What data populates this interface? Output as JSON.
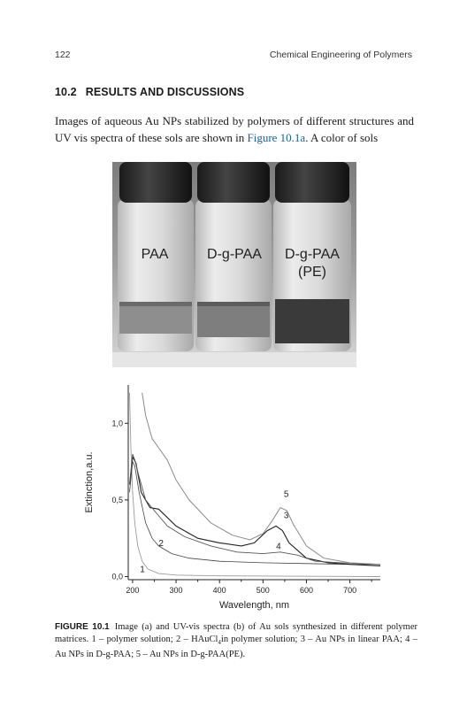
{
  "header": {
    "page_number": "122",
    "book_title": "Chemical Engineering of Polymers"
  },
  "section": {
    "number": "10.2",
    "title": "RESULTS AND DISCUSSIONS"
  },
  "paragraph": {
    "before_link": "Images of aqueous Au NPs stabilized by polymers of different structures and UV vis spectra of these sols are shown in ",
    "link": "Figure 10.1a",
    "after_link": ". A color of sols"
  },
  "photo": {
    "vial_labels": [
      "PAA",
      "D-g-PAA",
      "D-g-PAA",
      "(PE)"
    ]
  },
  "chart_data": {
    "type": "line",
    "ylabel": "Extinction,a.u.",
    "xlabel": "Wavelength, nm",
    "x_ticks": [
      "200",
      "300",
      "400",
      "500",
      "600",
      "700"
    ],
    "y_ticks": [
      "0,0",
      "0,5",
      "1,0"
    ],
    "xlim": [
      190,
      770
    ],
    "ylim": [
      -0.02,
      1.25
    ],
    "series": [
      {
        "name": "1",
        "points": [
          [
            193,
            1.2
          ],
          [
            196,
            0.85
          ],
          [
            200,
            0.55
          ],
          [
            205,
            0.35
          ],
          [
            212,
            0.2
          ],
          [
            222,
            0.1
          ],
          [
            235,
            0.05
          ],
          [
            260,
            0.02
          ],
          [
            300,
            0.01
          ],
          [
            400,
            0.005
          ],
          [
            770,
            0.0
          ]
        ]
      },
      {
        "name": "2",
        "points": [
          [
            193,
            0.55
          ],
          [
            200,
            0.75
          ],
          [
            205,
            0.72
          ],
          [
            215,
            0.55
          ],
          [
            230,
            0.35
          ],
          [
            245,
            0.25
          ],
          [
            260,
            0.2
          ],
          [
            290,
            0.15
          ],
          [
            330,
            0.12
          ],
          [
            400,
            0.1
          ],
          [
            500,
            0.09
          ],
          [
            600,
            0.085
          ],
          [
            700,
            0.08
          ],
          [
            770,
            0.08
          ]
        ]
      },
      {
        "name": "3",
        "points": [
          [
            193,
            0.6
          ],
          [
            200,
            0.78
          ],
          [
            208,
            0.74
          ],
          [
            220,
            0.55
          ],
          [
            240,
            0.45
          ],
          [
            260,
            0.44
          ],
          [
            300,
            0.33
          ],
          [
            350,
            0.25
          ],
          [
            400,
            0.22
          ],
          [
            450,
            0.2
          ],
          [
            480,
            0.22
          ],
          [
            510,
            0.3
          ],
          [
            530,
            0.33
          ],
          [
            545,
            0.3
          ],
          [
            560,
            0.22
          ],
          [
            600,
            0.12
          ],
          [
            650,
            0.09
          ],
          [
            700,
            0.08
          ],
          [
            770,
            0.07
          ]
        ]
      },
      {
        "name": "4",
        "points": [
          [
            193,
            0.6
          ],
          [
            200,
            0.8
          ],
          [
            205,
            0.76
          ],
          [
            215,
            0.65
          ],
          [
            230,
            0.5
          ],
          [
            250,
            0.43
          ],
          [
            280,
            0.33
          ],
          [
            320,
            0.26
          ],
          [
            380,
            0.2
          ],
          [
            440,
            0.16
          ],
          [
            500,
            0.15
          ],
          [
            540,
            0.16
          ],
          [
            580,
            0.14
          ],
          [
            620,
            0.1
          ],
          [
            680,
            0.09
          ],
          [
            770,
            0.08
          ]
        ]
      },
      {
        "name": "5",
        "points": [
          [
            222,
            1.2
          ],
          [
            230,
            1.05
          ],
          [
            245,
            0.9
          ],
          [
            260,
            0.84
          ],
          [
            280,
            0.76
          ],
          [
            300,
            0.63
          ],
          [
            330,
            0.5
          ],
          [
            380,
            0.35
          ],
          [
            430,
            0.27
          ],
          [
            470,
            0.24
          ],
          [
            500,
            0.28
          ],
          [
            520,
            0.36
          ],
          [
            540,
            0.45
          ],
          [
            555,
            0.43
          ],
          [
            570,
            0.34
          ],
          [
            600,
            0.2
          ],
          [
            640,
            0.12
          ],
          [
            700,
            0.09
          ],
          [
            770,
            0.08
          ]
        ]
      }
    ]
  },
  "caption": {
    "label": "FIGURE 10.1",
    "text_1": "Image (a) and UV-vis spectra (b) of Au sols synthesized in different polymer matrices. 1 – polymer solution; 2 – HAuCl",
    "sub": "4",
    "text_2": "in polymer solution; 3 – Au NPs in linear PAA; 4 – Au NPs in D-g-PAA; 5 – Au NPs in D-g-PAA(PE)."
  }
}
